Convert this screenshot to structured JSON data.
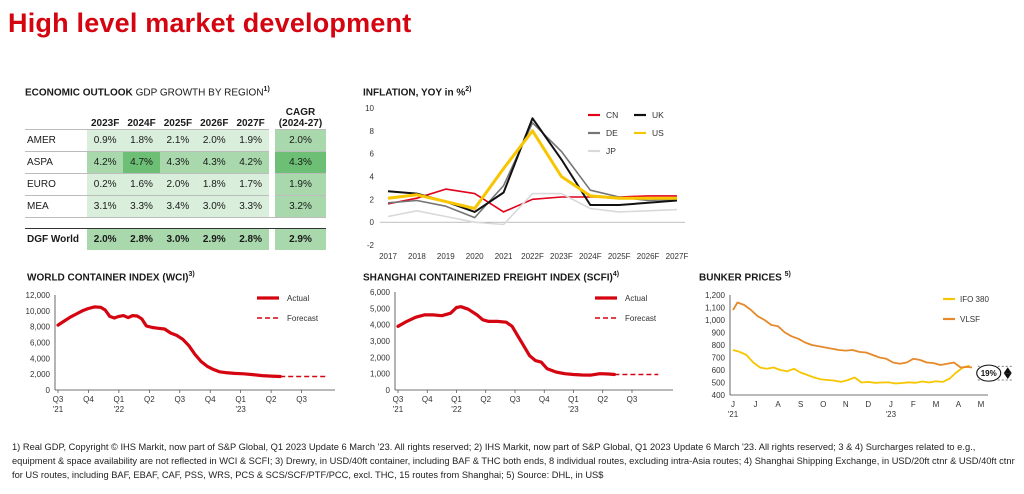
{
  "page": {
    "title": "High level market development"
  },
  "gdp": {
    "title_bold": "ECONOMIC OUTLOOK",
    "title_rest": "GDP GROWTH BY REGION",
    "footnote_mark": "1)",
    "years": [
      "2023F",
      "2024F",
      "2025F",
      "2026F",
      "2027F"
    ],
    "cagr_header_line1": "CAGR",
    "cagr_header_line2": "(2024-27)",
    "rows": [
      {
        "region": "AMER",
        "values": [
          "0.9%",
          "1.8%",
          "2.1%",
          "2.0%",
          "1.9%"
        ],
        "cagr": "2.0%"
      },
      {
        "region": "ASPA",
        "values": [
          "4.2%",
          "4.7%",
          "4.3%",
          "4.3%",
          "4.2%"
        ],
        "cagr": "4.3%"
      },
      {
        "region": "EURO",
        "values": [
          "0.2%",
          "1.6%",
          "2.0%",
          "1.8%",
          "1.7%"
        ],
        "cagr": "1.9%"
      },
      {
        "region": "MEA",
        "values": [
          "3.1%",
          "3.3%",
          "3.4%",
          "3.0%",
          "3.3%"
        ],
        "cagr": "3.2%"
      }
    ],
    "world": {
      "region": "DGF World",
      "values": [
        "2.0%",
        "2.8%",
        "3.0%",
        "2.9%",
        "2.8%"
      ],
      "cagr": "2.9%"
    },
    "colors": {
      "light": "#d9eedb",
      "mid": "#a8d8ac",
      "dark": "#6cbf74"
    }
  },
  "chart_data": [
    {
      "id": "inflation",
      "type": "line",
      "title": "INFLATION, YOY in %",
      "footnote_mark": "2)",
      "categories": [
        "2017",
        "2018",
        "2019",
        "2020",
        "2021",
        "2022F",
        "2023F",
        "2024F",
        "2025F",
        "2026F",
        "2027F"
      ],
      "ylim": [
        -2,
        10
      ],
      "yticks": [
        "-2",
        "0",
        "2",
        "4",
        "6",
        "8",
        "10"
      ],
      "series": [
        {
          "name": "CN",
          "color": "#e3001b",
          "values": [
            1.6,
            2.1,
            2.9,
            2.5,
            0.9,
            2.0,
            2.2,
            2.2,
            2.2,
            2.3,
            2.3
          ]
        },
        {
          "name": "DE",
          "color": "#757575",
          "values": [
            1.7,
            1.9,
            1.4,
            0.4,
            3.2,
            8.7,
            6.2,
            2.8,
            2.2,
            1.9,
            2.0
          ]
        },
        {
          "name": "JP",
          "color": "#d9d9d9",
          "values": [
            0.5,
            1.0,
            0.5,
            0.0,
            -0.2,
            2.5,
            2.5,
            1.2,
            0.9,
            1.0,
            1.1
          ]
        },
        {
          "name": "UK",
          "color": "#111111",
          "values": [
            2.7,
            2.5,
            1.8,
            0.9,
            2.6,
            9.1,
            5.5,
            1.5,
            1.5,
            1.7,
            1.9
          ]
        },
        {
          "name": "US",
          "color": "#f7c600",
          "values": [
            2.1,
            2.4,
            1.8,
            1.2,
            4.7,
            8.0,
            4.0,
            2.3,
            2.1,
            2.1,
            2.1
          ]
        }
      ]
    },
    {
      "id": "wci",
      "type": "line",
      "title": "WORLD CONTAINER INDEX (WCI)",
      "footnote_mark": "3)",
      "ylim": [
        0,
        12000
      ],
      "yticks": [
        "0",
        "2,000",
        "4,000",
        "6,000",
        "8,000",
        "10,000",
        "12,000"
      ],
      "xticks": [
        "Q3",
        "Q4",
        "Q1",
        "Q2",
        "Q3",
        "Q4",
        "Q1",
        "Q2",
        "Q3"
      ],
      "xyears": [
        {
          "at": 0,
          "label": "'21"
        },
        {
          "at": 2,
          "label": "'22"
        },
        {
          "at": 6,
          "label": "'23"
        }
      ],
      "legend": [
        "Actual",
        "Forecast"
      ],
      "actual_color": "#d40511",
      "actual": [
        [
          0.0,
          8200
        ],
        [
          0.2,
          8700
        ],
        [
          0.4,
          9200
        ],
        [
          0.6,
          9600
        ],
        [
          0.8,
          10000
        ],
        [
          1.0,
          10300
        ],
        [
          1.2,
          10500
        ],
        [
          1.4,
          10450
        ],
        [
          1.55,
          10100
        ],
        [
          1.7,
          9300
        ],
        [
          1.85,
          9100
        ],
        [
          2.0,
          9300
        ],
        [
          2.15,
          9400
        ],
        [
          2.3,
          9150
        ],
        [
          2.45,
          9400
        ],
        [
          2.6,
          9350
        ],
        [
          2.75,
          9000
        ],
        [
          2.9,
          8100
        ],
        [
          3.1,
          7900
        ],
        [
          3.3,
          7800
        ],
        [
          3.5,
          7700
        ],
        [
          3.7,
          7200
        ],
        [
          3.9,
          6900
        ],
        [
          4.1,
          6400
        ],
        [
          4.3,
          5600
        ],
        [
          4.5,
          4500
        ],
        [
          4.7,
          3600
        ],
        [
          4.9,
          3000
        ],
        [
          5.1,
          2600
        ],
        [
          5.3,
          2300
        ],
        [
          5.5,
          2200
        ],
        [
          5.8,
          2100
        ],
        [
          6.1,
          2050
        ],
        [
          6.4,
          1950
        ],
        [
          6.7,
          1820
        ],
        [
          7.0,
          1750
        ],
        [
          7.3,
          1700
        ]
      ],
      "forecast": [
        [
          7.3,
          1700
        ],
        [
          8.0,
          1700
        ],
        [
          8.8,
          1700
        ]
      ]
    },
    {
      "id": "scfi",
      "type": "line",
      "title": "SHANGHAI CONTAINERIZED FREIGHT INDEX (SCFI)",
      "footnote_mark": "4)",
      "ylim": [
        0,
        6000
      ],
      "yticks": [
        "0",
        "1,000",
        "2,000",
        "3,000",
        "4,000",
        "5,000",
        "6,000"
      ],
      "xticks": [
        "Q3",
        "Q4",
        "Q1",
        "Q2",
        "Q3",
        "Q4",
        "Q1",
        "Q2",
        "Q3"
      ],
      "xyears": [
        {
          "at": 0,
          "label": "'21"
        },
        {
          "at": 2,
          "label": "'22"
        },
        {
          "at": 6,
          "label": "'23"
        }
      ],
      "legend": [
        "Actual",
        "Forecast"
      ],
      "actual_color": "#d40511",
      "actual": [
        [
          0.0,
          3900
        ],
        [
          0.3,
          4200
        ],
        [
          0.6,
          4450
        ],
        [
          0.9,
          4600
        ],
        [
          1.2,
          4600
        ],
        [
          1.5,
          4550
        ],
        [
          1.8,
          4700
        ],
        [
          2.0,
          5050
        ],
        [
          2.15,
          5100
        ],
        [
          2.4,
          4950
        ],
        [
          2.7,
          4600
        ],
        [
          2.9,
          4300
        ],
        [
          3.1,
          4200
        ],
        [
          3.4,
          4200
        ],
        [
          3.7,
          4150
        ],
        [
          3.9,
          3900
        ],
        [
          4.1,
          3300
        ],
        [
          4.3,
          2700
        ],
        [
          4.5,
          2100
        ],
        [
          4.7,
          1800
        ],
        [
          4.9,
          1700
        ],
        [
          5.1,
          1300
        ],
        [
          5.4,
          1100
        ],
        [
          5.7,
          1000
        ],
        [
          6.0,
          950
        ],
        [
          6.3,
          920
        ],
        [
          6.6,
          910
        ],
        [
          6.9,
          1000
        ],
        [
          7.2,
          980
        ],
        [
          7.4,
          950
        ]
      ],
      "forecast": [
        [
          7.4,
          950
        ],
        [
          8.0,
          950
        ],
        [
          8.9,
          950
        ]
      ]
    },
    {
      "id": "bunker",
      "type": "line",
      "title": "BUNKER PRICES",
      "footnote_mark": "5)",
      "ylim": [
        400,
        1200
      ],
      "yticks": [
        "400",
        "500",
        "600",
        "700",
        "800",
        "900",
        "1,000",
        "1,100",
        "1,200"
      ],
      "xticks": [
        "J",
        "J",
        "A",
        "S",
        "O",
        "N",
        "D",
        "J",
        "F",
        "M",
        "A",
        "M"
      ],
      "xyears": [
        {
          "at": 0,
          "label": "'21"
        },
        {
          "at": 7,
          "label": "'23"
        }
      ],
      "series": [
        {
          "name": "IFO 380",
          "color": "#f7c600",
          "values": [
            [
              0.0,
              760
            ],
            [
              0.3,
              745
            ],
            [
              0.6,
              720
            ],
            [
              0.9,
              660
            ],
            [
              1.2,
              620
            ],
            [
              1.5,
              610
            ],
            [
              1.8,
              620
            ],
            [
              2.1,
              600
            ],
            [
              2.4,
              590
            ],
            [
              2.7,
              610
            ],
            [
              3.0,
              580
            ],
            [
              3.3,
              560
            ],
            [
              3.6,
              540
            ],
            [
              3.9,
              525
            ],
            [
              4.2,
              520
            ],
            [
              4.5,
              515
            ],
            [
              4.8,
              505
            ],
            [
              5.1,
              520
            ],
            [
              5.4,
              540
            ],
            [
              5.7,
              500
            ],
            [
              6.0,
              505
            ],
            [
              6.3,
              498
            ],
            [
              6.6,
              500
            ],
            [
              6.9,
              502
            ],
            [
              7.2,
              492
            ],
            [
              7.5,
              496
            ],
            [
              7.8,
              502
            ],
            [
              8.1,
              498
            ],
            [
              8.4,
              508
            ],
            [
              8.7,
              500
            ],
            [
              9.0,
              510
            ],
            [
              9.3,
              505
            ],
            [
              9.6,
              530
            ],
            [
              9.9,
              580
            ],
            [
              10.2,
              620
            ],
            [
              10.5,
              635
            ]
          ]
        },
        {
          "name": "VLSF",
          "color": "#e58a2b",
          "values": [
            [
              0.0,
              1080
            ],
            [
              0.2,
              1140
            ],
            [
              0.5,
              1120
            ],
            [
              0.8,
              1080
            ],
            [
              1.1,
              1030
            ],
            [
              1.4,
              1000
            ],
            [
              1.7,
              960
            ],
            [
              2.0,
              950
            ],
            [
              2.3,
              900
            ],
            [
              2.6,
              870
            ],
            [
              2.9,
              850
            ],
            [
              3.2,
              820
            ],
            [
              3.5,
              800
            ],
            [
              3.8,
              790
            ],
            [
              4.1,
              780
            ],
            [
              4.4,
              770
            ],
            [
              4.7,
              760
            ],
            [
              5.0,
              755
            ],
            [
              5.3,
              760
            ],
            [
              5.6,
              745
            ],
            [
              5.9,
              740
            ],
            [
              6.2,
              720
            ],
            [
              6.5,
              700
            ],
            [
              6.8,
              690
            ],
            [
              7.1,
              660
            ],
            [
              7.4,
              650
            ],
            [
              7.7,
              660
            ],
            [
              8.0,
              690
            ],
            [
              8.3,
              680
            ],
            [
              8.6,
              660
            ],
            [
              8.9,
              655
            ],
            [
              9.2,
              640
            ],
            [
              9.5,
              650
            ],
            [
              9.8,
              660
            ],
            [
              10.1,
              620
            ],
            [
              10.4,
              625
            ],
            [
              10.6,
              620
            ]
          ]
        }
      ],
      "annotation": "19%"
    }
  ],
  "footnote": "1) Real GDP, Copyright © IHS Markit, now part of S&P Global, Q1 2023 Update 6 March '23. All rights reserved; 2) IHS Markit, now part of S&P Global, Q1 2023 Update 6 March '23. All rights reserved;  3 & 4) Surcharges related to e.g., equipment & space availability are not reflected in WCI & SCFI; 3) Drewry, in USD/40ft container, including BAF & THC both ends, 8 individual routes, excluding intra-Asia routes; 4) Shanghai Shipping Exchange, in USD/20ft ctnr & USD/40ft ctnr for US routes, including BAF, EBAF, CAF, PSS, WRS, PCS & SCS/SCF/PTF/PCC, excl. THC, 15 routes from Shanghai; 5) Source: DHL, in US$"
}
